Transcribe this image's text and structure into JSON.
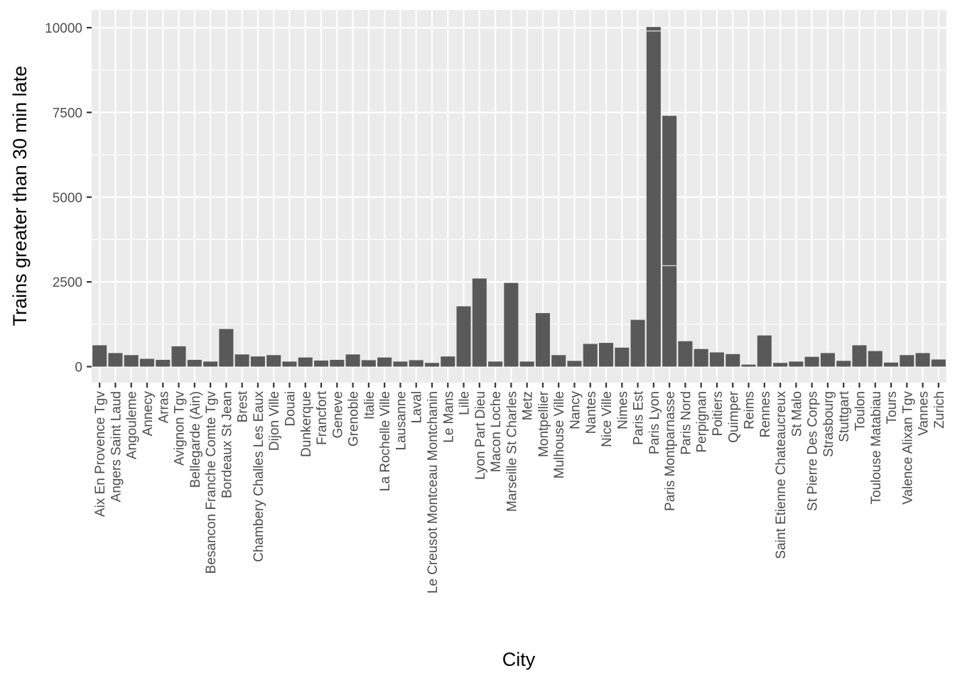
{
  "chart_data": {
    "type": "bar",
    "title": "",
    "xlabel": "City",
    "ylabel": "Trains greater than 30 min late",
    "ylim": [
      0,
      10500
    ],
    "yticks": [
      0,
      2500,
      5000,
      7500,
      10000
    ],
    "ytick_labels": [
      "0",
      "2500",
      "5000",
      "7500",
      "10000"
    ],
    "grid": true,
    "legend": "none",
    "colors": {
      "panel": "#ebebeb",
      "grid_major": "#ffffff",
      "bar": "#595959",
      "text": "#4d4d4d",
      "axis_title": "#000000"
    },
    "categories": [
      "Aix En Provence Tgv",
      "Angers Saint Laud",
      "Angouleme",
      "Annecy",
      "Arras",
      "Avignon Tgv",
      "Bellegarde (Ain)",
      "Besancon Franche Comte Tgv",
      "Bordeaux St Jean",
      "Brest",
      "Chambery Challes Les Eaux",
      "Dijon Ville",
      "Douai",
      "Dunkerque",
      "Francfort",
      "Geneve",
      "Grenoble",
      "Italie",
      "La Rochelle Ville",
      "Lausanne",
      "Laval",
      "Le Creusot Montceau Montchanin",
      "Le Mans",
      "Lille",
      "Lyon Part Dieu",
      "Macon Loche",
      "Marseille St Charles",
      "Metz",
      "Montpellier",
      "Mulhouse Ville",
      "Nancy",
      "Nantes",
      "Nice Ville",
      "Nimes",
      "Paris Est",
      "Paris Lyon",
      "Paris Montparnasse",
      "Paris Nord",
      "Perpignan",
      "Poitiers",
      "Quimper",
      "Reims",
      "Rennes",
      "Saint Etienne Chateaucreux",
      "St Malo",
      "St Pierre Des Corps",
      "Strasbourg",
      "Stuttgart",
      "Toulon",
      "Toulouse Matabiau",
      "Tours",
      "Valence Alixan Tgv",
      "Vannes",
      "Zurich"
    ],
    "values": [
      630,
      400,
      340,
      230,
      200,
      600,
      200,
      150,
      1110,
      360,
      300,
      340,
      150,
      270,
      180,
      200,
      360,
      190,
      270,
      150,
      190,
      110,
      300,
      1780,
      2600,
      150,
      2470,
      150,
      1580,
      340,
      170,
      670,
      700,
      560,
      1380,
      10020,
      7400,
      750,
      520,
      420,
      370,
      60,
      920,
      110,
      150,
      290,
      400,
      170,
      630,
      460,
      120,
      340,
      400,
      210
    ],
    "segment_breaks": {
      "Paris Lyon": [
        9900
      ],
      "Paris Montparnasse": [
        2980
      ]
    }
  }
}
